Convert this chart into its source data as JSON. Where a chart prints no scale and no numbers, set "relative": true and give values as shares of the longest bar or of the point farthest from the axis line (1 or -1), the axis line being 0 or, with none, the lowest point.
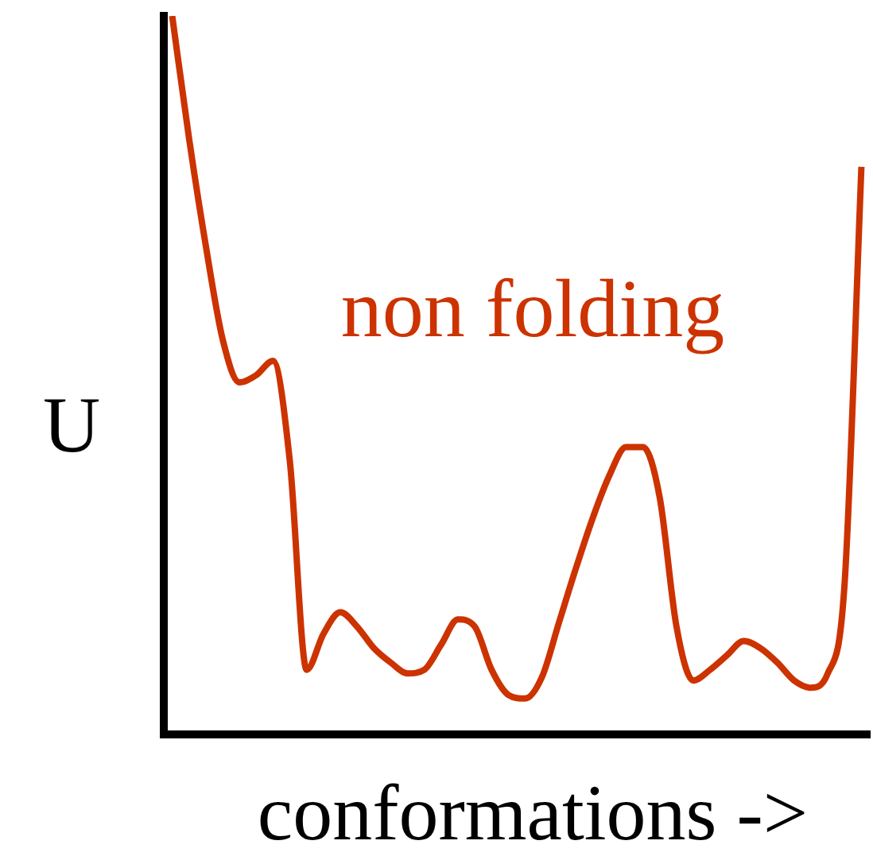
{
  "chart_data": {
    "type": "line",
    "relative": true,
    "xlabel": "conformations ->",
    "ylabel": "U",
    "annotations": [
      "non folding"
    ],
    "categories": [
      null,
      null,
      null,
      null,
      null,
      null,
      null,
      null,
      null,
      null,
      null,
      null,
      null,
      null,
      null,
      null,
      null,
      null,
      null,
      null,
      null,
      null,
      null,
      null,
      null,
      null,
      null,
      null,
      null,
      null,
      null,
      null,
      null,
      null,
      null,
      null,
      null,
      null,
      null,
      null,
      null,
      null
    ],
    "series": [
      {
        "color": "#cc3300",
        "values": [
          1.0,
          0.83,
          0.68,
          0.55,
          0.49,
          0.5,
          0.52,
          0.38,
          0.09,
          0.14,
          0.17,
          0.15,
          0.12,
          0.1,
          0.085,
          0.09,
          0.125,
          0.16,
          0.15,
          0.09,
          0.055,
          0.05,
          0.08,
          0.155,
          0.23,
          0.3,
          0.36,
          0.4,
          0.4,
          0.33,
          0.15,
          0.075,
          0.09,
          0.11,
          0.13,
          0.12,
          0.1,
          0.075,
          0.065,
          0.085,
          0.21,
          0.79
        ]
      }
    ],
    "grid": false,
    "legend": false,
    "marker": "none",
    "line_style": "solid"
  }
}
